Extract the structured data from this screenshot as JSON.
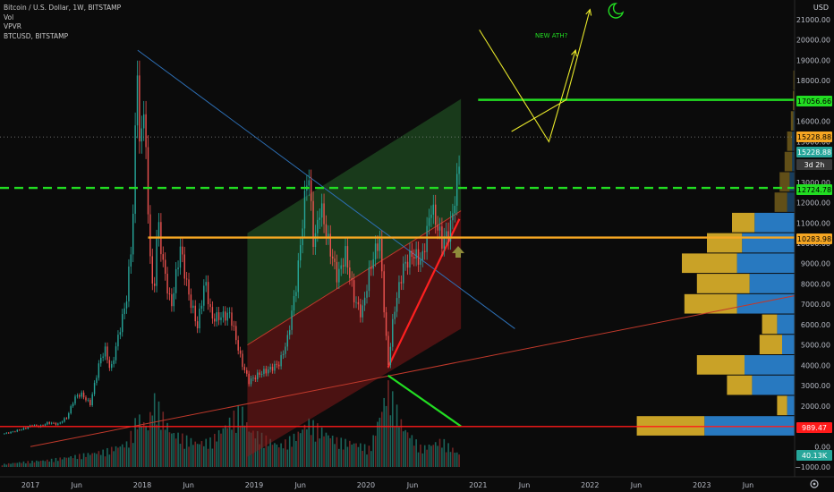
{
  "legend": {
    "symbol_line": "Bitcoin / U.S. Dollar, 1W, BITSTAMP",
    "vol_label": "Vol",
    "vpvr_label": "VPVR",
    "compare_label": "BTCUSD, BITSTAMP"
  },
  "currency_label": "USD",
  "annotation_text": "NEW ATH?",
  "chart_data": {
    "type": "candlestick",
    "y_scale": "linear",
    "ylim": [
      -1500,
      21500
    ],
    "y_ticks": [
      -1000,
      0,
      1000,
      2000,
      3000,
      4000,
      5000,
      6000,
      7000,
      8000,
      9000,
      10000,
      11000,
      12000,
      13000,
      14000,
      15000,
      16000,
      17000,
      18000,
      19000,
      20000,
      21000
    ],
    "y_tick_labels": [
      "−1000.00",
      "0.00",
      "1000.00",
      "2000.00",
      "3000.00",
      "4000.00",
      "5000.00",
      "6000.00",
      "7000.00",
      "8000.00",
      "9000.00",
      "10000.00",
      "11000.00",
      "12000.00",
      "13000.00",
      "14000.00",
      "15000.00",
      "16000.00",
      "17000.00",
      "18000.00",
      "19000.00",
      "20000.00",
      "21000.00"
    ],
    "x_ticks": [
      {
        "label": "2017",
        "date": "2017-01-01"
      },
      {
        "label": "Jun",
        "date": "2017-06-01"
      },
      {
        "label": "2018",
        "date": "2018-01-01"
      },
      {
        "label": "Jun",
        "date": "2018-06-01"
      },
      {
        "label": "2019",
        "date": "2019-01-01"
      },
      {
        "label": "Jun",
        "date": "2019-06-01"
      },
      {
        "label": "2020",
        "date": "2020-01-01"
      },
      {
        "label": "Jun",
        "date": "2020-06-01"
      },
      {
        "label": "2021",
        "date": "2021-01-01"
      },
      {
        "label": "Jun",
        "date": "2021-06-01"
      },
      {
        "label": "2022",
        "date": "2022-01-01"
      },
      {
        "label": "Jun",
        "date": "2022-06-01"
      },
      {
        "label": "2023",
        "date": "2023-01-01"
      },
      {
        "label": "Jun",
        "date": "2023-06-01"
      }
    ],
    "price_series": [
      [
        "2016-10-01",
        620
      ],
      [
        "2016-11-01",
        720
      ],
      [
        "2016-12-15",
        900
      ],
      [
        "2017-01-05",
        1050
      ],
      [
        "2017-02-01",
        990
      ],
      [
        "2017-03-01",
        1180
      ],
      [
        "2017-04-01",
        1100
      ],
      [
        "2017-05-01",
        1450
      ],
      [
        "2017-05-25",
        2400
      ],
      [
        "2017-06-15",
        2600
      ],
      [
        "2017-07-15",
        2100
      ],
      [
        "2017-08-15",
        4200
      ],
      [
        "2017-09-01",
        4800
      ],
      [
        "2017-09-20",
        3700
      ],
      [
        "2017-10-20",
        5800
      ],
      [
        "2017-11-10",
        7200
      ],
      [
        "2017-11-30",
        10500
      ],
      [
        "2017-12-17",
        19500
      ],
      [
        "2017-12-24",
        14000
      ],
      [
        "2018-01-06",
        17000
      ],
      [
        "2018-01-20",
        11500
      ],
      [
        "2018-02-06",
        6900
      ],
      [
        "2018-02-20",
        11200
      ],
      [
        "2018-03-10",
        9000
      ],
      [
        "2018-04-05",
        6800
      ],
      [
        "2018-05-05",
        9800
      ],
      [
        "2018-06-01",
        7500
      ],
      [
        "2018-06-30",
        5900
      ],
      [
        "2018-07-25",
        8200
      ],
      [
        "2018-08-15",
        6300
      ],
      [
        "2018-10-15",
        6500
      ],
      [
        "2018-11-20",
        4200
      ],
      [
        "2018-12-15",
        3200
      ],
      [
        "2019-01-20",
        3600
      ],
      [
        "2019-02-20",
        3800
      ],
      [
        "2019-03-25",
        4100
      ],
      [
        "2019-04-20",
        5300
      ],
      [
        "2019-05-20",
        8100
      ],
      [
        "2019-06-26",
        13800
      ],
      [
        "2019-07-15",
        9800
      ],
      [
        "2019-08-05",
        11900
      ],
      [
        "2019-09-01",
        10000
      ],
      [
        "2019-09-30",
        8300
      ],
      [
        "2019-10-26",
        9500
      ],
      [
        "2019-11-25",
        7200
      ],
      [
        "2019-12-18",
        6500
      ],
      [
        "2020-01-15",
        8800
      ],
      [
        "2020-02-14",
        10300
      ],
      [
        "2020-03-13",
        3900
      ],
      [
        "2020-04-01",
        6600
      ],
      [
        "2020-05-01",
        8800
      ],
      [
        "2020-06-01",
        9500
      ],
      [
        "2020-07-01",
        9100
      ],
      [
        "2020-08-01",
        11800
      ],
      [
        "2020-09-05",
        10100
      ],
      [
        "2020-10-01",
        10600
      ],
      [
        "2020-10-25",
        13000
      ],
      [
        "2020-11-06",
        15228.88
      ]
    ],
    "volume_series": [
      [
        "2016-10-01",
        100
      ],
      [
        "2016-12-01",
        180
      ],
      [
        "2017-03-01",
        260
      ],
      [
        "2017-06-01",
        420
      ],
      [
        "2017-09-01",
        600
      ],
      [
        "2017-11-15",
        900
      ],
      [
        "2017-12-17",
        1900
      ],
      [
        "2018-01-20",
        1500
      ],
      [
        "2018-02-06",
        2600
      ],
      [
        "2018-04-05",
        1300
      ],
      [
        "2018-06-30",
        900
      ],
      [
        "2018-08-15",
        1000
      ],
      [
        "2018-11-20",
        2200
      ],
      [
        "2018-12-15",
        1400
      ],
      [
        "2019-03-25",
        800
      ],
      [
        "2019-05-20",
        1200
      ],
      [
        "2019-06-26",
        1700
      ],
      [
        "2019-09-30",
        1000
      ],
      [
        "2019-11-25",
        900
      ],
      [
        "2020-01-15",
        700
      ],
      [
        "2020-03-13",
        3000
      ],
      [
        "2020-05-01",
        1500
      ],
      [
        "2020-07-01",
        700
      ],
      [
        "2020-09-05",
        1000
      ],
      [
        "2020-11-06",
        420
      ]
    ],
    "volume_profile": {
      "bins": [
        {
          "price": 3000,
          "up": 1.0,
          "down": 1.7
        },
        {
          "price": 4000,
          "up": 1.9,
          "down": 2.0
        },
        {
          "price": 5000,
          "up": 0.9,
          "down": 0.5
        },
        {
          "price": 6000,
          "up": 0.6,
          "down": 0.7
        },
        {
          "price": 7000,
          "up": 2.1,
          "down": 2.3
        },
        {
          "price": 8000,
          "up": 2.1,
          "down": 1.8
        },
        {
          "price": 9000,
          "up": 2.2,
          "down": 2.3
        },
        {
          "price": 10000,
          "up": 1.4,
          "down": 2.1
        },
        {
          "price": 11000,
          "up": 0.9,
          "down": 1.6
        },
        {
          "price": 12000,
          "up": 0.5,
          "down": 0.3
        },
        {
          "price": 13000,
          "up": 0.4,
          "down": 0.2
        },
        {
          "price": 14000,
          "up": 0.3,
          "down": 0.1
        },
        {
          "price": 15000,
          "up": 0.2,
          "down": 0.1
        },
        {
          "price": 16000,
          "up": 0.1,
          "down": 0.05
        },
        {
          "price": 17000,
          "up": 0.05,
          "down": 0.02
        },
        {
          "price": 18000,
          "up": 0.03,
          "down": 0.02
        },
        {
          "price": 2000,
          "up": 0.4,
          "down": 0.3
        },
        {
          "price": 1000,
          "up": 2.7,
          "down": 3.6
        }
      ]
    },
    "price_markers": [
      {
        "value": 17056.66,
        "label": "17056.66",
        "color": "#22dd22"
      },
      {
        "value": 15228.88,
        "label": "15228.88",
        "color": "#f5a623"
      },
      {
        "value": 15228.88,
        "label": "15228.88",
        "color": "#26a69a"
      },
      {
        "value": 14300,
        "label": "3d 2h",
        "color": "#3a3a3a"
      },
      {
        "value": 12724.78,
        "label": "12724.78",
        "color": "#22dd22"
      },
      {
        "value": 10283.98,
        "label": "10283.98",
        "color": "#f5a623"
      },
      {
        "value": 989.47,
        "label": "989.47",
        "color": "#ff1a1a"
      },
      {
        "value": -500,
        "label": "40.13K",
        "color": "#26a69a"
      }
    ],
    "horizontal_levels": [
      {
        "value": 17056.66,
        "from": "2021-01-01",
        "style": "solid",
        "color": "#22dd22"
      },
      {
        "value": 12724.78,
        "style": "dashed",
        "color": "#22dd22"
      },
      {
        "value": 10283.98,
        "from": "2018-01-20",
        "style": "solid",
        "color": "#f5a623"
      },
      {
        "value": 989.47,
        "style": "solid",
        "color": "#ff1a1a"
      },
      {
        "value": 15228.88,
        "style": "dotted",
        "color": "#888888"
      }
    ],
    "drawings": {
      "downtrend_line": [
        [
          "2017-12-17",
          19500
        ],
        [
          "2021-05-01",
          5800
        ]
      ],
      "support_line_long": [
        [
          "2017-01-01",
          0
        ],
        [
          "2024-02-01",
          7700
        ]
      ],
      "support_line_short": [
        [
          "2020-03-13",
          3900
        ],
        [
          "2020-11-01",
          11200
        ]
      ],
      "channel_upper": [
        [
          "2018-12-10",
          10500
        ],
        [
          "2020-11-06",
          17100
        ]
      ],
      "channel_mid": [
        [
          "2018-12-10",
          5000
        ],
        [
          "2020-11-06",
          11600
        ]
      ],
      "channel_lower": [
        [
          "2018-12-10",
          -500
        ],
        [
          "2020-11-06",
          5800
        ]
      ],
      "volume_trend_line": [
        [
          "2020-03-13",
          3500
        ],
        [
          "2020-11-06",
          1000
        ]
      ],
      "projection_v": [
        [
          "2021-01-05",
          20500
        ],
        [
          "2021-08-20",
          15000
        ],
        [
          "2021-11-15",
          19500
        ]
      ],
      "projection_up": [
        [
          "2021-04-20",
          15500
        ],
        [
          "2021-10-15",
          17056.66
        ],
        [
          "2022-01-01",
          21500
        ]
      ]
    }
  }
}
